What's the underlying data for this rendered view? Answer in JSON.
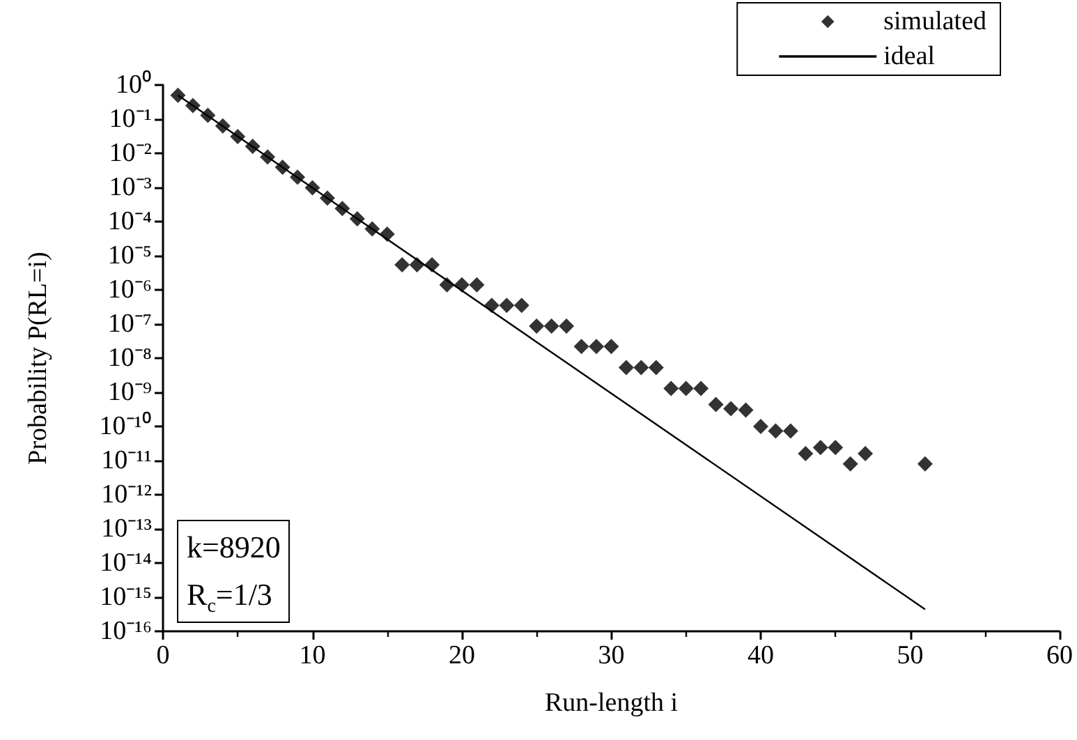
{
  "chart_data": {
    "type": "scatter",
    "xlabel": "Run-length i",
    "ylabel": "Probability P(RL=i)",
    "log": "y",
    "marker": "diamond",
    "legend": "top right",
    "grid": false,
    "xlim": [
      0,
      60
    ],
    "xticks": [
      0,
      10,
      20,
      30,
      40,
      50,
      60
    ],
    "ylim": [
      1e-16,
      1
    ],
    "yticks": [
      {
        "value": 1,
        "label": "10⁰"
      },
      {
        "value": 0.1,
        "label": "10⁻¹"
      },
      {
        "value": 0.01,
        "label": "10⁻²"
      },
      {
        "value": 0.001,
        "label": "10⁻³"
      },
      {
        "value": 0.0001,
        "label": "10⁻⁴"
      },
      {
        "value": 1e-05,
        "label": "10⁻⁵"
      },
      {
        "value": 1e-06,
        "label": "10⁻⁶"
      },
      {
        "value": 1e-07,
        "label": "10⁻⁷"
      },
      {
        "value": 1e-08,
        "label": "10⁻⁸"
      },
      {
        "value": 1e-09,
        "label": "10⁻⁹"
      },
      {
        "value": 1e-10,
        "label": "10⁻¹⁰"
      },
      {
        "value": 1e-11,
        "label": "10⁻¹¹"
      },
      {
        "value": 1e-12,
        "label": "10⁻¹²"
      },
      {
        "value": 1e-13,
        "label": "10⁻¹³"
      },
      {
        "value": 1e-14,
        "label": "10⁻¹⁴"
      },
      {
        "value": 1e-15,
        "label": "10⁻¹⁵"
      },
      {
        "value": 1e-16,
        "label": "10⁻¹⁶"
      }
    ],
    "annotations": [
      "k=8920",
      "R$_{c}$=1/3"
    ],
    "series": [
      {
        "name": "simulated",
        "color": "#000000",
        "x": [
          1,
          2,
          3,
          4,
          5,
          6,
          7,
          8,
          9,
          10,
          11,
          12,
          13,
          14,
          15,
          16,
          17,
          18,
          19,
          20,
          21,
          22,
          23,
          24,
          25,
          26,
          27,
          28,
          29,
          30,
          31,
          32,
          33,
          34,
          35,
          36,
          37,
          38,
          39,
          40,
          41,
          42,
          43,
          44,
          45,
          46,
          47,
          51
        ],
        "values": [
          0.5,
          0.25,
          0.13,
          0.063,
          0.031,
          0.016,
          0.0078,
          0.0039,
          0.002,
          0.00098,
          0.00049,
          0.00024,
          0.00012,
          6.1e-05,
          4.3e-05,
          5.4e-06,
          5.4e-06,
          5.4e-06,
          1.4e-06,
          1.4e-06,
          1.4e-06,
          3.5e-07,
          3.5e-07,
          3.5e-07,
          8.7e-08,
          8.7e-08,
          8.7e-08,
          2.2e-08,
          2.2e-08,
          2.2e-08,
          5.3e-09,
          5.3e-09,
          5.3e-09,
          1.3e-09,
          1.3e-09,
          1.3e-09,
          4.4e-10,
          3.3e-10,
          3e-10,
          1e-10,
          7.4e-11,
          7.4e-11,
          1.6e-11,
          2.4e-11,
          2.4e-11,
          8e-12,
          1.6e-11,
          8e-12
        ]
      },
      {
        "name": "ideal",
        "type": "line",
        "marker": "none",
        "line_style": "solid",
        "color": "#000000",
        "x": [
          1,
          51
        ],
        "values": [
          0.5,
          4.4e-16
        ]
      }
    ]
  }
}
